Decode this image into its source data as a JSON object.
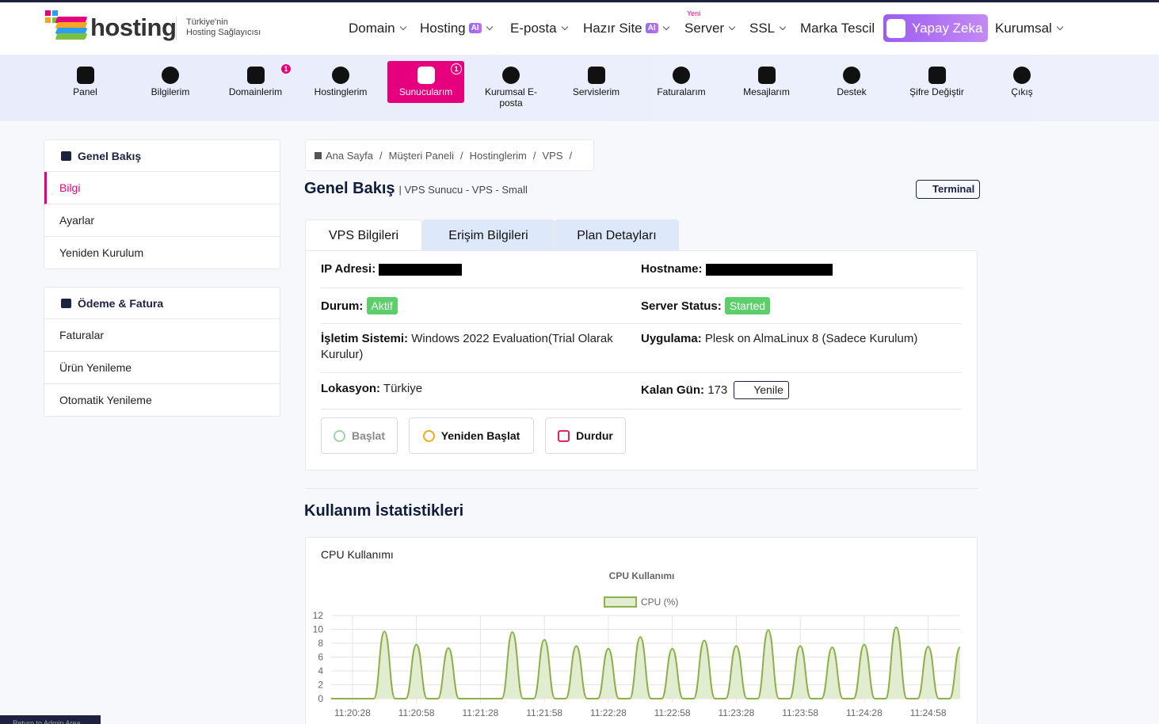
{
  "header": {
    "logo": "hosting",
    "tagline": [
      "Türkiye'nin",
      "Hosting Sağlayıcısı"
    ],
    "nav": [
      {
        "label": "Domain",
        "dropdown": true
      },
      {
        "label": "Hosting",
        "badge": "AI",
        "dropdown": true
      },
      {
        "label": "E-posta",
        "dropdown": true
      },
      {
        "label": "Hazır Site",
        "badge": "AI",
        "dropdown": true
      },
      {
        "label": "Server",
        "tag": "Yeni",
        "dropdown": true
      },
      {
        "label": "SSL",
        "dropdown": true
      },
      {
        "label": "Marka Tescil"
      },
      {
        "label": "Yapay Zeka",
        "highlight": true
      },
      {
        "label": "Kurumsal",
        "dropdown": true
      }
    ]
  },
  "toolbar": [
    {
      "label": "Panel"
    },
    {
      "label": "Bilgilerim"
    },
    {
      "label": "Domainlerim",
      "badge": 1
    },
    {
      "label": "Hostinglerim"
    },
    {
      "label": "Sunucularım",
      "badge": 1,
      "active": true
    },
    {
      "label": "Kurumsal E-posta"
    },
    {
      "label": "Servislerim"
    },
    {
      "label": "Faturalarım"
    },
    {
      "label": "Mesajlarım"
    },
    {
      "label": "Destek"
    },
    {
      "label": "Şifre Değiştir"
    },
    {
      "label": "Çıkış"
    }
  ],
  "sidebar": [
    {
      "title": "Genel Bakış",
      "items": [
        "Bilgi",
        "Ayarlar",
        "Yeniden Kurulum"
      ]
    },
    {
      "title": "Ödeme & Fatura",
      "items": [
        "Faturalar",
        "Ürün Yenileme",
        "Otomatik Yenileme"
      ]
    }
  ],
  "breadcrumb": {
    "separator": "/",
    "items": [
      "Ana Sayfa",
      "Müşteri Paneli",
      "Hostinglerim",
      "VPS"
    ]
  },
  "page": {
    "title": "Genel Bakış",
    "subtitle": "| VPS Sunucu - VPS - Small",
    "terminal": "Terminal"
  },
  "tabs": [
    "VPS Bilgileri",
    "Erişim Bilgileri",
    "Plan Detayları"
  ],
  "info": [
    [
      {
        "label": "IP Adresi:"
      },
      {
        "label": "Hostname:"
      }
    ],
    [
      {
        "label": "Durum:",
        "badge": "Aktif"
      },
      {
        "label": "Server Status:",
        "badge": "Started"
      }
    ],
    [
      {
        "label": "İşletim Sistemi:",
        "value": "Windows 2022 Evaluation(Trial Olarak Kurulur)"
      },
      {
        "label": "Uygulama:",
        "value": "Plesk on AlmaLinux 8 (Sadece Kurulum)"
      }
    ],
    [
      {
        "label": "Lokasyon:",
        "value": "Türkiye"
      },
      {
        "label": "Kalan Gün:",
        "value": 173,
        "button": "Yenile"
      }
    ]
  ],
  "actions": [
    "Başlat",
    "Yeniden Başlat",
    "Durdur"
  ],
  "stats_title": "Kullanım İstatistikleri",
  "card_title": "CPU Kullanımı",
  "admin_link": "Return to Admin Area",
  "chart_data": {
    "type": "line",
    "title": "CPU Kullanımı",
    "categories": [
      null,
      null,
      "11:20:28",
      null,
      null,
      null,
      null,
      null,
      "11:20:58",
      null,
      null,
      null,
      null,
      null,
      "11:21:28",
      null,
      null,
      null,
      null,
      null,
      "11:21:58",
      null,
      null,
      null,
      null,
      null,
      "11:22:28",
      null,
      null,
      null,
      null,
      null,
      "11:22:58",
      null,
      null,
      null,
      null,
      null,
      "11:23:28",
      null,
      null,
      null,
      null,
      null,
      "11:23:58",
      null,
      null,
      null,
      null,
      null,
      "11:24:28",
      null,
      null,
      null,
      null,
      null,
      "11:24:58",
      null,
      null,
      null
    ],
    "series": [
      {
        "name": "CPU (%)",
        "color": "#8db04a",
        "fill": "#e2ecd0",
        "values": [
          0,
          0,
          0,
          0,
          0,
          9.7,
          0,
          0,
          7.8,
          0,
          0,
          7.3,
          0,
          0,
          0,
          0,
          0,
          9.6,
          0,
          0,
          8.5,
          0,
          0,
          7.6,
          0,
          0,
          7.2,
          0,
          0,
          8.9,
          0,
          0,
          7.2,
          0,
          0,
          8.4,
          0,
          0,
          7.6,
          0,
          0,
          9.9,
          0,
          0,
          7.6,
          0,
          0,
          7.4,
          0,
          0,
          7.8,
          0,
          0,
          10.3,
          0,
          0,
          7.5,
          0,
          0,
          7.4
        ]
      }
    ],
    "ylim": [
      0,
      12
    ],
    "yticks": [
      0,
      2,
      4,
      6,
      8,
      10,
      12
    ],
    "grid": true,
    "legend": "top"
  }
}
